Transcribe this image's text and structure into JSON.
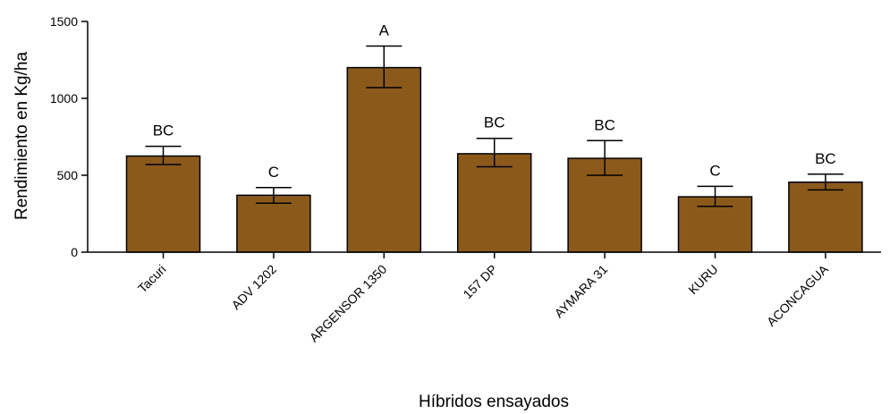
{
  "chart_data": {
    "type": "bar",
    "categories": [
      "Tacuri",
      "ADV 1202",
      "ARGENSOR 1350",
      "157 DP",
      "AYMARA 31",
      "KURU",
      "ACONCAGUA"
    ],
    "values": [
      625,
      370,
      1200,
      640,
      610,
      360,
      455
    ],
    "error_low": [
      570,
      318,
      1070,
      555,
      500,
      298,
      405
    ],
    "error_high": [
      688,
      420,
      1340,
      740,
      725,
      428,
      507
    ],
    "significance_labels": [
      "BC",
      "C",
      "A",
      "BC",
      "BC",
      "C",
      "BC"
    ],
    "xlabel": "Híbridos ensayados",
    "ylabel": "Rendimiento en Kg/ha",
    "ylim": [
      0,
      1500
    ],
    "yticks": [
      0,
      500,
      1000,
      1500
    ],
    "bar_color": "#8b5a1b",
    "grid": false,
    "legend": "none"
  }
}
